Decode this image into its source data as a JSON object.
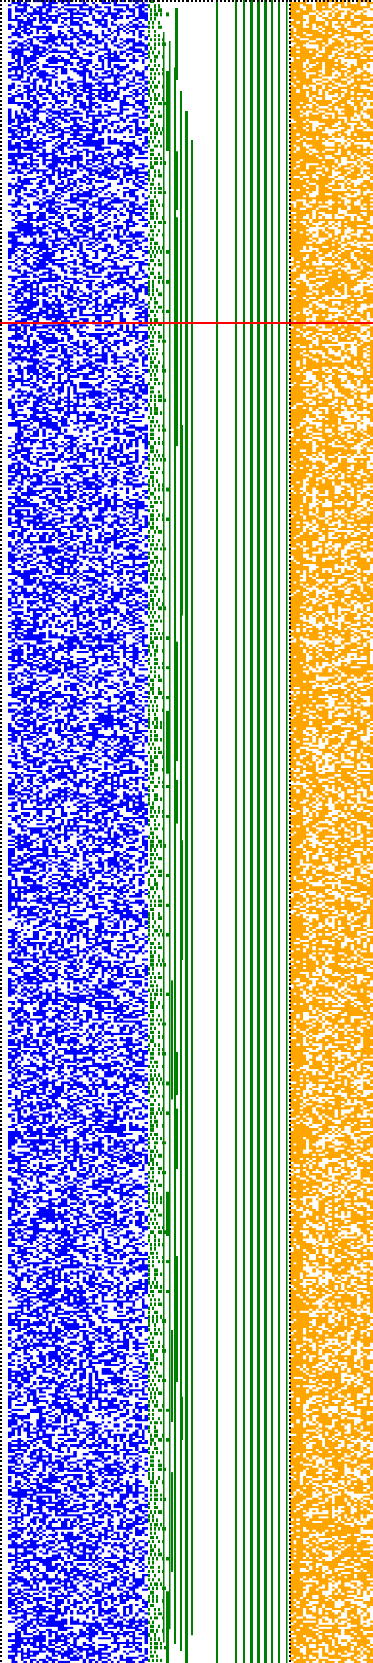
{
  "colors": {
    "background": "#ffffff",
    "left_block": "#0000ff",
    "tree_lines": "#008000",
    "right_block": "#ffa500",
    "marker_line": "#ff0000",
    "dotted_border": "#000000"
  },
  "grid": {
    "rows": 784,
    "columns_left_block": 45,
    "columns_right_block": 26
  },
  "vertical_lines_count": 15,
  "marker_row_fraction": 0.194
}
